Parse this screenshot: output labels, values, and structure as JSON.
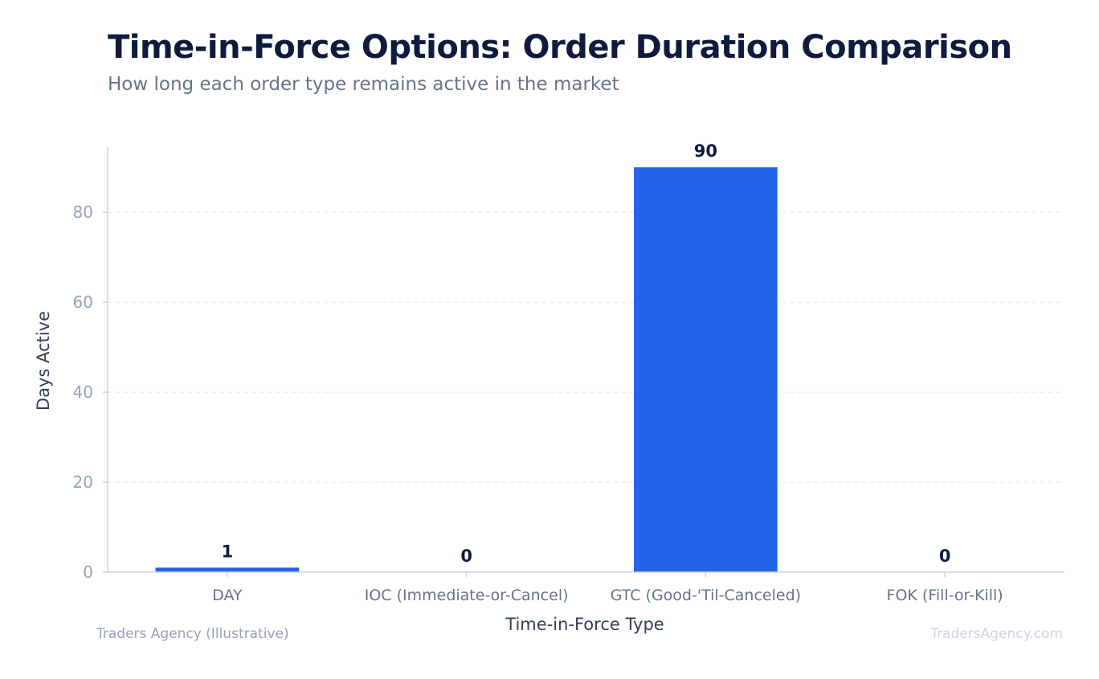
{
  "chart_data": {
    "type": "bar",
    "title": "Time-in-Force Options: Order Duration Comparison",
    "subtitle": "How long each order type remains active in the market",
    "xlabel": "Time-in-Force Type",
    "ylabel": "Days Active",
    "categories": [
      "DAY",
      "IOC (Immediate-or-Cancel)",
      "GTC (Good-'Til-Canceled)",
      "FOK (Fill-or-Kill)"
    ],
    "values": [
      1,
      0,
      90,
      0
    ],
    "data_labels": [
      "1",
      "0",
      "90",
      "0"
    ],
    "ylim": [
      0,
      94.5
    ],
    "yticks": [
      0,
      20,
      40,
      60,
      80
    ],
    "grid": true,
    "bar_color": "#2563eb",
    "axis_color": "#cbd5e1",
    "tick_label_color": "#94a3b8",
    "label_color": "#334155",
    "data_label_color": "#0f1b3d"
  },
  "footer": {
    "source": "Traders Agency (Illustrative)",
    "brand": "TradersAgency.com"
  }
}
